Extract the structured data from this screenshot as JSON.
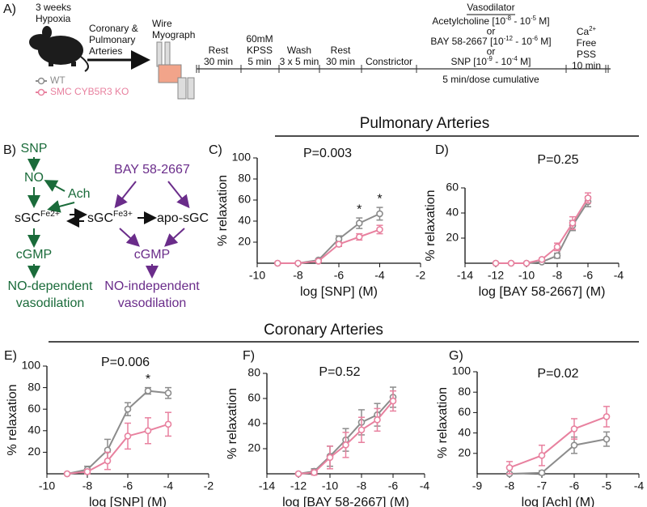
{
  "section_titles": [
    "Pulmonary Arteries",
    "Coronary Arteries"
  ],
  "panel_a": {
    "label": "A)",
    "mouse": [
      "3 weeks",
      "Hypoxia"
    ],
    "arteries": [
      "Coronary &",
      "Pulmonary",
      "Arteries"
    ],
    "myograph": [
      "Wire",
      "Myograph"
    ],
    "steps": [
      [
        "Rest",
        "30 min"
      ],
      [
        "60mM",
        "KPSS",
        "5 min"
      ],
      [
        "Wash",
        "3 x 5 min"
      ],
      [
        "Rest",
        "30 min"
      ],
      [
        "Constrictor"
      ]
    ],
    "vasodilator": {
      "title": "Vasodilator",
      "lines": [
        [
          "Acetylcholine [10",
          "-8",
          " - 10",
          "-5",
          " M]"
        ],
        [
          "or"
        ],
        [
          "BAY 58-2667 [10",
          "-12",
          " - 10",
          "-6",
          " M]"
        ],
        [
          "or"
        ],
        [
          "SNP [10",
          "-9",
          " - 10",
          "-4",
          " M]"
        ]
      ],
      "note": "5 min/dose cumulative"
    },
    "final": [
      [
        "Ca",
        "2+"
      ],
      [
        "Free"
      ],
      [
        "PSS"
      ],
      [
        "10 min"
      ]
    ]
  },
  "panel_b": {
    "label": "B)",
    "snp": "SNP",
    "no": "NO",
    "ach": "Ach",
    "sgc_fe2": [
      "sGC",
      "Fe2+"
    ],
    "cgmp_left": "cGMP",
    "no_dependent": [
      "NO-dependent",
      "vasodilation"
    ],
    "bay": "BAY 58-2667",
    "sgc_fe3": [
      "sGC",
      "Fe3+"
    ],
    "apo": "apo-sGC",
    "cgmp_right": "cGMP",
    "no_independent": [
      "NO-independent",
      "vasodilation"
    ]
  },
  "chart_data": [
    {
      "type": "line",
      "panel_label": "C)",
      "annotation": "P=0.003",
      "xlabel": "log [SNP] (M)",
      "ylabel": "% relaxation",
      "x": [
        -9,
        -8,
        -7,
        -6,
        -5,
        -4
      ],
      "xlim": [
        -10,
        -2
      ],
      "xticks": [
        -10,
        -8,
        -6,
        -4,
        -2
      ],
      "ylim": [
        0,
        100
      ],
      "yticks": [
        20,
        40,
        60,
        80,
        100
      ],
      "series": [
        {
          "name": "WT",
          "color": "#8c8c8c",
          "values": [
            0,
            0,
            3,
            23,
            38,
            47
          ],
          "errors": [
            0,
            0,
            1,
            3,
            5,
            6
          ]
        },
        {
          "name": "SMC CYB5R3 KO",
          "color": "#e8819f",
          "values": [
            0,
            0,
            2,
            18,
            25,
            32
          ],
          "errors": [
            0,
            0,
            1,
            2,
            3,
            4
          ]
        }
      ],
      "stars": [
        {
          "x": -5,
          "label": "*"
        },
        {
          "x": -4,
          "label": "*"
        }
      ]
    },
    {
      "type": "line",
      "panel_label": "D)",
      "annotation": "P=0.25",
      "xlabel": "log [BAY 58-2667] (M)",
      "ylabel": "% relaxation",
      "x": [
        -12,
        -11,
        -10,
        -9,
        -8,
        -7,
        -6
      ],
      "xlim": [
        -14,
        -4
      ],
      "xticks": [
        -14,
        -12,
        -10,
        -8,
        -6,
        -4
      ],
      "ylim": [
        0,
        60
      ],
      "yticks": [
        20,
        40,
        60
      ],
      "series": [
        {
          "color": "#8c8c8c",
          "values": [
            0,
            0,
            0,
            1,
            6,
            30,
            49
          ],
          "errors": [
            0,
            0,
            0,
            1,
            2,
            4,
            4
          ]
        },
        {
          "color": "#e8819f",
          "values": [
            0,
            0,
            0,
            3,
            13,
            32,
            52
          ],
          "errors": [
            0,
            0,
            0,
            1,
            3,
            5,
            4
          ]
        }
      ]
    },
    {
      "type": "line",
      "panel_label": "E)",
      "annotation": "P=0.006",
      "xlabel": "log [SNP] (M)",
      "ylabel": "% relaxation",
      "x": [
        -9,
        -8,
        -7,
        -6,
        -5,
        -4
      ],
      "xlim": [
        -10,
        -2
      ],
      "xticks": [
        -10,
        -8,
        -6,
        -4,
        -2
      ],
      "ylim": [
        0,
        100
      ],
      "yticks": [
        20,
        40,
        60,
        80,
        100
      ],
      "series": [
        {
          "color": "#8c8c8c",
          "values": [
            0,
            4,
            22,
            60,
            77,
            75
          ],
          "errors": [
            0,
            3,
            10,
            6,
            3,
            5
          ]
        },
        {
          "color": "#e8819f",
          "values": [
            0,
            2,
            12,
            35,
            40,
            46
          ],
          "errors": [
            0,
            2,
            8,
            12,
            12,
            11
          ]
        }
      ],
      "stars": [
        {
          "x": -5,
          "label": "*"
        }
      ]
    },
    {
      "type": "line",
      "panel_label": "F)",
      "annotation": "P=0.52",
      "xlabel": "log [BAY 58-2667] (M)",
      "ylabel": "% relaxation",
      "x": [
        -12,
        -11,
        -10,
        -9,
        -8,
        -7,
        -6
      ],
      "xlim": [
        -14,
        -4
      ],
      "xticks": [
        -14,
        -12,
        -10,
        -8,
        -6,
        -4
      ],
      "ylim": [
        0,
        80
      ],
      "yticks": [
        20,
        40,
        60,
        80
      ],
      "series": [
        {
          "color": "#8c8c8c",
          "values": [
            0,
            2,
            14,
            27,
            41,
            47,
            61
          ],
          "errors": [
            0,
            2,
            8,
            9,
            10,
            9,
            8
          ]
        },
        {
          "color": "#e8819f",
          "values": [
            0,
            1,
            13,
            23,
            35,
            43,
            58
          ],
          "errors": [
            0,
            2,
            9,
            10,
            10,
            9,
            8
          ]
        }
      ]
    },
    {
      "type": "line",
      "panel_label": "G)",
      "annotation": "P=0.02",
      "xlabel": "log [Ach] (M)",
      "ylabel": "% relaxation",
      "x": [
        -8,
        -7,
        -6,
        -5
      ],
      "xlim": [
        -9,
        -4
      ],
      "xticks": [
        -9,
        -8,
        -7,
        -6,
        -5,
        -4
      ],
      "ylim": [
        0,
        100
      ],
      "yticks": [
        20,
        40,
        60,
        80,
        100
      ],
      "series": [
        {
          "color": "#8c8c8c",
          "values": [
            0,
            1,
            28,
            34
          ],
          "errors": [
            0,
            2,
            8,
            7
          ]
        },
        {
          "color": "#e8819f",
          "values": [
            6,
            18,
            44,
            56
          ],
          "errors": [
            6,
            10,
            10,
            10
          ]
        }
      ]
    }
  ]
}
